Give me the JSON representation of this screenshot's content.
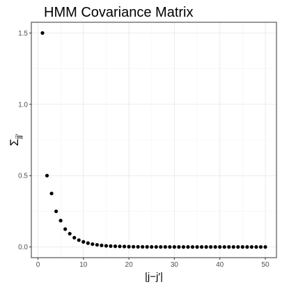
{
  "chart_data": {
    "type": "scatter",
    "title": "HMM Covariance Matrix",
    "xlabel": "|j−j′|",
    "ylabel": "Σ",
    "ylabel_subscript": "jj′",
    "xlim": [
      -1.45,
      52.45
    ],
    "ylim": [
      -0.075,
      1.575
    ],
    "x_ticks": [
      0,
      10,
      20,
      30,
      40,
      50
    ],
    "x_tick_labels": [
      "0",
      "10",
      "20",
      "30",
      "40",
      "50"
    ],
    "y_ticks": [
      0.0,
      0.5,
      1.0,
      1.5
    ],
    "y_tick_labels": [
      "0.0",
      "0.5",
      "1.0",
      "1.5"
    ],
    "grid": true,
    "point_color": "#000000",
    "x": [
      1,
      2,
      3,
      4,
      5,
      6,
      7,
      8,
      9,
      10,
      11,
      12,
      13,
      14,
      15,
      16,
      17,
      18,
      19,
      20,
      21,
      22,
      23,
      24,
      25,
      26,
      27,
      28,
      29,
      30,
      31,
      32,
      33,
      34,
      35,
      36,
      37,
      38,
      39,
      40,
      41,
      42,
      43,
      44,
      45,
      46,
      47,
      48,
      49,
      50
    ],
    "y": [
      1.5,
      0.5,
      0.375,
      0.25,
      0.185,
      0.125,
      0.093,
      0.065,
      0.048,
      0.036,
      0.027,
      0.02,
      0.015,
      0.011,
      0.008,
      0.006,
      0.005,
      0.004,
      0.003,
      0.002,
      0.0015,
      0.001,
      0.0008,
      0.0006,
      0.0005,
      0.0004,
      0.0003,
      0.0002,
      0.0002,
      0.0001,
      0.0001,
      0.0001,
      0.0001,
      0,
      0,
      0,
      0,
      0,
      0,
      0,
      0,
      0,
      0,
      0,
      0,
      0,
      0,
      0,
      0,
      0
    ]
  }
}
